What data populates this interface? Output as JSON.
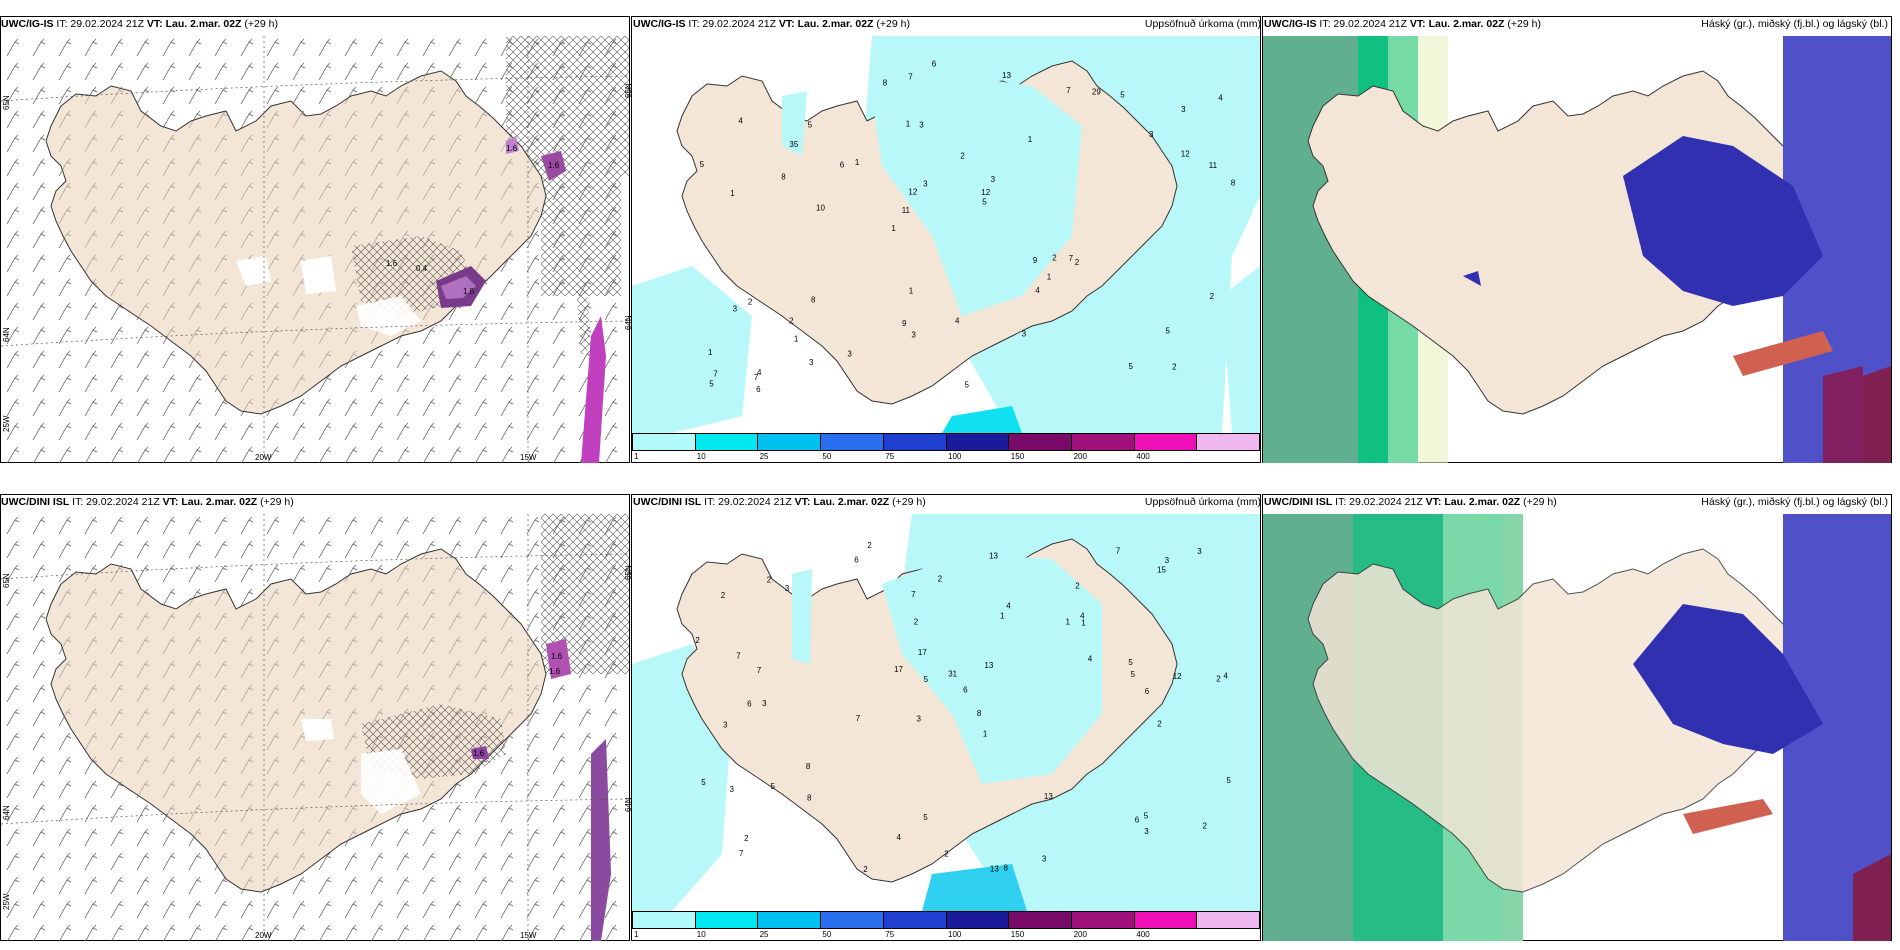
{
  "rows": [
    {
      "model": "UWC/IG-IS",
      "wind": {
        "header": {
          "model": "UWC/IG-IS",
          "it": "IT: 29.02.2024 21Z",
          "vt": "VT: Lau. 2.mar. 02Z",
          "lead": "(+29 h)"
        },
        "lon_labels": [
          "20W",
          "15W"
        ],
        "lat_labels": [
          "65N",
          "64N",
          "25W"
        ],
        "cells": [
          "1.6",
          "1.6",
          "1.6",
          "1.6",
          "0.4"
        ]
      },
      "precip": {
        "header": {
          "model": "UWC/IG-IS",
          "it": "IT: 29.02.2024 21Z",
          "vt": "VT: Lau. 2.mar. 02Z",
          "lead": "(+29 h)",
          "title": "Uppsöfnuð úrkoma (mm)"
        },
        "lat_labels": [
          "65N",
          "64N"
        ],
        "points": [
          "2",
          "1",
          "3",
          "1",
          "1",
          "4",
          "1",
          "2",
          "2",
          "1",
          "1",
          "1",
          "3",
          "3",
          "2",
          "4",
          "7",
          "8",
          "9",
          "12",
          "11",
          "9",
          "12",
          "5",
          "7",
          "8",
          "5",
          "5",
          "7",
          "5",
          "6",
          "8",
          "4",
          "3",
          "11",
          "12",
          "7",
          "3",
          "5",
          "3",
          "3",
          "4",
          "1",
          "3",
          "2",
          "6",
          "5",
          "4",
          "5",
          "6",
          "10",
          "5",
          "35",
          "29",
          "7",
          "13",
          "8",
          "3",
          "2",
          "1",
          "3",
          "2"
        ]
      },
      "clouds": {
        "header": {
          "model": "UWC/IG-IS",
          "it": "IT: 29.02.2024 21Z",
          "vt": "VT: Lau. 2.mar. 02Z",
          "lead": "(+29 h)",
          "title": "Háský (gr.), miðský (fj.bl.) og lágský (bl.)"
        }
      }
    },
    {
      "model": "UWC/DINI ISL",
      "wind": {
        "header": {
          "model": "UWC/DINI ISL",
          "it": "IT: 29.02.2024 21Z",
          "vt": "VT: Lau. 2.mar. 02Z",
          "lead": "(+29 h)"
        },
        "lon_labels": [
          "20W",
          "15W"
        ],
        "lat_labels": [
          "65N",
          "64N",
          "25W"
        ],
        "cells": [
          "1.6",
          "1.6",
          "1.6"
        ]
      },
      "precip": {
        "header": {
          "model": "UWC/DINI ISL",
          "it": "IT: 29.02.2024 21Z",
          "vt": "VT: Lau. 2.mar. 02Z",
          "lead": "(+29 h)",
          "title": "Uppsöfnuð úrkoma (mm)"
        },
        "lat_labels": [
          "65N",
          "64N"
        ],
        "points": [
          "2",
          "2",
          "2",
          "3",
          "1",
          "3",
          "2",
          "1",
          "3",
          "1",
          "6",
          "7",
          "6",
          "7",
          "13",
          "8",
          "5",
          "7",
          "4",
          "8",
          "7",
          "6",
          "4",
          "12",
          "5",
          "7",
          "5",
          "5",
          "5",
          "3",
          "6",
          "4",
          "5",
          "17",
          "13",
          "5",
          "5",
          "4",
          "3",
          "2",
          "2",
          "2",
          "3",
          "2",
          "2",
          "1",
          "3",
          "4",
          "2",
          "8",
          "7",
          "6",
          "13",
          "15",
          "13",
          "8",
          "17",
          "31",
          "3",
          "2",
          "2",
          "2",
          "3"
        ]
      },
      "clouds": {
        "header": {
          "model": "UWC/DINI ISL",
          "it": "IT: 29.02.2024 21Z",
          "vt": "VT: Lau. 2.mar. 02Z",
          "lead": "(+29 h)",
          "title": "Háský (gr.), miðský (fj.bl.) og lágský (bl.)"
        }
      }
    }
  ],
  "colorbar": {
    "ticks": [
      "1",
      "10",
      "25",
      "50",
      "75",
      "100",
      "150",
      "200",
      "400"
    ],
    "colors": [
      "#b2fafa",
      "#00e8f0",
      "#00c0f0",
      "#2a6ef0",
      "#1e3fd0",
      "#1a1a9a",
      "#7a0a6a",
      "#a0107a",
      "#f010b8",
      "#f0b8f0"
    ]
  },
  "colors": {
    "land": "#f4e6d6",
    "precip_light": "#b8f8f8",
    "high_cloud": "#1aa070",
    "mid_cloud": "#4040c0",
    "low_cloud": "#2030a0"
  }
}
